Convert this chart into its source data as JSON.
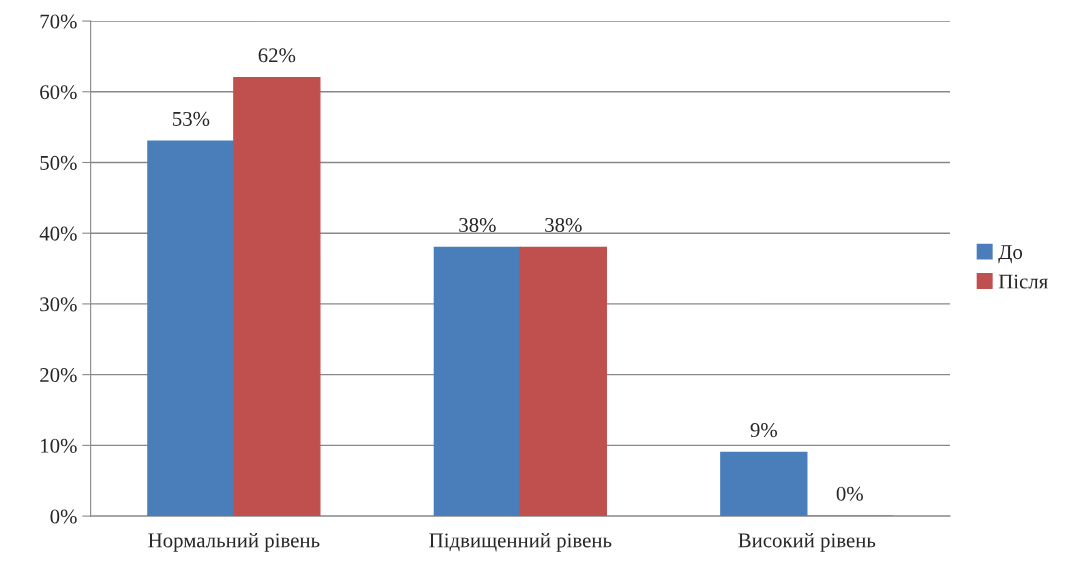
{
  "chart_data": {
    "type": "bar",
    "categories": [
      "Нормальний рівень",
      "Підвищенний рівень",
      "Високий рівень"
    ],
    "series": [
      {
        "name": "До",
        "color": "#4a7ebb",
        "values": [
          53,
          38,
          9
        ],
        "value_labels": [
          "53%",
          "38%",
          "9%"
        ]
      },
      {
        "name": "Після",
        "color": "#c0504d",
        "values": [
          62,
          38,
          0
        ],
        "value_labels": [
          "62%",
          "38%",
          "0%"
        ]
      }
    ],
    "ylim": [
      0,
      70
    ],
    "yticks": [
      {
        "value": 0,
        "label": "0%"
      },
      {
        "value": 10,
        "label": "10%"
      },
      {
        "value": 20,
        "label": "20%"
      },
      {
        "value": 30,
        "label": "30%"
      },
      {
        "value": 40,
        "label": "40%"
      },
      {
        "value": 50,
        "label": "50%"
      },
      {
        "value": 60,
        "label": "60%"
      },
      {
        "value": 70,
        "label": "70%"
      }
    ],
    "grid": "y",
    "legend": "right"
  }
}
